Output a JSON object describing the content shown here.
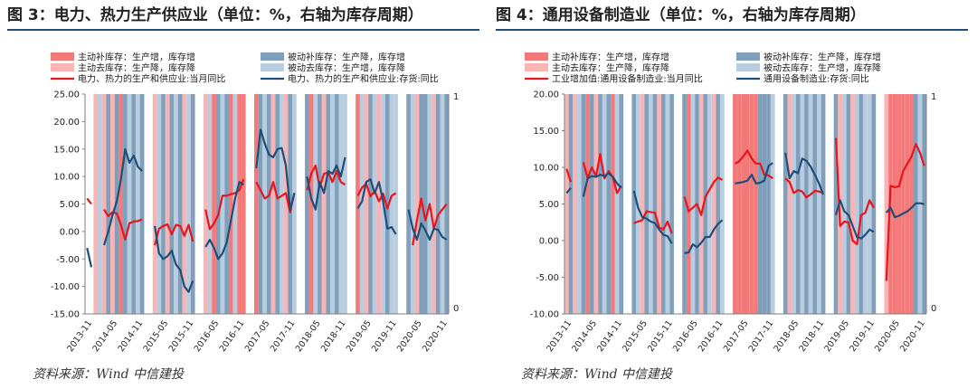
{
  "colors": {
    "active_restock": "#f47a7a",
    "active_destock": "#fbb4b4",
    "passive_restock": "#7f9fba",
    "passive_destock": "#b9cde0",
    "production_line": "#e8141e",
    "inventory_line": "#1f4e79",
    "title_rule": "#1f4e79"
  },
  "panels": [
    {
      "title": "图 3：电力、热力生产供应业（单位：%，右轴为库存周期）",
      "source": "资料来源：Wind 中信建投",
      "legend": [
        {
          "label": "主动补库存：生产增，库存增",
          "kind": "patch",
          "phase": "AR"
        },
        {
          "label": "被动补库存：生产降，库存增",
          "kind": "patch",
          "phase": "PR"
        },
        {
          "label": "主动去库存：生产降，库存降",
          "kind": "patch",
          "phase": "AD"
        },
        {
          "label": "被动去库存：生产增，库存降",
          "kind": "patch",
          "phase": "PD"
        },
        {
          "label": "电力、热力的生产和供应业:当月同比",
          "kind": "line",
          "series": "production"
        },
        {
          "label": "电力、热力的生产和供应业:存货:同比",
          "kind": "line",
          "series": "inventory"
        }
      ]
    },
    {
      "title": "图 4：通用设备制造业（单位：%，右轴为库存周期）",
      "source": "资料来源：Wind 中信建投",
      "legend": [
        {
          "label": "主动补库存：生产增，库存增",
          "kind": "patch",
          "phase": "AR"
        },
        {
          "label": "被动补库存：生产降，库存增",
          "kind": "patch",
          "phase": "PR"
        },
        {
          "label": "主动去库存：生产降，库存降",
          "kind": "patch",
          "phase": "AD"
        },
        {
          "label": "被动去库存：生产增，库存降",
          "kind": "patch",
          "phase": "PD"
        },
        {
          "label": "工业增加值:通用设备制造业:当月同比",
          "kind": "line",
          "series": "production"
        },
        {
          "label": "通用设备制造业:存货:同比",
          "kind": "line",
          "series": "inventory"
        }
      ]
    }
  ],
  "chart_data": [
    {
      "type": "line",
      "title": "图 3：电力、热力生产供应业（单位：%，右轴为库存周期）",
      "x": [
        "2013-11",
        "2013-12",
        "2014-01",
        "2014-02",
        "2014-03",
        "2014-04",
        "2014-05",
        "2014-06",
        "2014-07",
        "2014-08",
        "2014-09",
        "2014-10",
        "2014-11",
        "2014-12",
        "2015-01",
        "2015-02",
        "2015-03",
        "2015-04",
        "2015-05",
        "2015-06",
        "2015-07",
        "2015-08",
        "2015-09",
        "2015-10",
        "2015-11",
        "2015-12",
        "2016-01",
        "2016-02",
        "2016-03",
        "2016-04",
        "2016-05",
        "2016-06",
        "2016-07",
        "2016-08",
        "2016-09",
        "2016-10",
        "2016-11",
        "2016-12",
        "2017-01",
        "2017-02",
        "2017-03",
        "2017-04",
        "2017-05",
        "2017-06",
        "2017-07",
        "2017-08",
        "2017-09",
        "2017-10",
        "2017-11",
        "2017-12",
        "2018-01",
        "2018-02",
        "2018-03",
        "2018-04",
        "2018-05",
        "2018-06",
        "2018-07",
        "2018-08",
        "2018-09",
        "2018-10",
        "2018-11",
        "2018-12",
        "2019-01",
        "2019-02",
        "2019-03",
        "2019-04",
        "2019-05",
        "2019-06",
        "2019-07",
        "2019-08",
        "2019-09",
        "2019-10",
        "2019-11",
        "2019-12",
        "2020-01",
        "2020-02",
        "2020-03",
        "2020-04",
        "2020-05",
        "2020-06",
        "2020-07",
        "2020-08",
        "2020-09",
        "2020-10",
        "2020-11",
        "2020-12"
      ],
      "x_tick_labels": [
        "2013-11",
        "2014-05",
        "2014-11",
        "2015-05",
        "2015-11",
        "2016-05",
        "2016-11",
        "2017-05",
        "2017-11",
        "2018-05",
        "2018-11",
        "2019-05",
        "2019-11",
        "2020-05",
        "2020-11"
      ],
      "ylim": [
        -15,
        25
      ],
      "yticks": [
        -15,
        -10,
        -5,
        0,
        5,
        10,
        15,
        20,
        25
      ],
      "y_tick_labels": [
        "-15.00",
        "-10.00",
        "-5.00",
        "0.00",
        "5.00",
        "10.00",
        "15.00",
        "20.00",
        "25.00"
      ],
      "y2lim": [
        0,
        1
      ],
      "y2_tick_labels": [
        "0",
        "1"
      ],
      "phases": [
        "",
        "",
        "AD",
        "PD",
        "AD",
        "PR",
        "AD",
        "PR",
        "AR",
        "PR",
        "PD",
        "PR",
        "PD",
        "PR",
        "",
        "",
        "AD",
        "PD",
        "PR",
        "AD",
        "PR",
        "PD",
        "PR",
        "AD",
        "PD",
        "PR",
        "",
        "",
        "AD",
        "PD",
        "AR",
        "PR",
        "PD",
        "PR",
        "AR",
        "PD",
        "AR",
        "AR",
        "",
        "",
        "AR",
        "PR",
        "PD",
        "PR",
        "AD",
        "PR",
        "PD",
        "AD",
        "PR",
        "PD",
        "",
        "",
        "PR",
        "AR",
        "PD",
        "PR",
        "AD",
        "PR",
        "PD",
        "PR",
        "PD",
        "PD",
        "",
        "",
        "AR",
        "PD",
        "AD",
        "PR",
        "PD",
        "AD",
        "PD",
        "PR",
        "PD",
        "PD",
        "",
        "",
        "PR",
        "PD",
        "AD",
        "PR",
        "PR",
        "PD",
        "AD",
        "PR",
        "PD",
        "PR"
      ],
      "series": [
        {
          "name": "电力、热力的生产和供应业:当月同比",
          "role": "production",
          "values": [
            6.0,
            5.0,
            null,
            null,
            4.0,
            2.8,
            3.5,
            3.3,
            1.2,
            -1.5,
            1.5,
            1.8,
            1.9,
            2.2,
            null,
            null,
            -2.5,
            0.5,
            1.0,
            1.3,
            -0.5,
            1.2,
            1.0,
            -0.8,
            1.2,
            -1.8,
            null,
            null,
            4.0,
            0.4,
            1.5,
            3.0,
            6.5,
            6.5,
            6.8,
            7.0,
            7.5,
            9.5,
            null,
            null,
            9.0,
            7.5,
            6.0,
            6.5,
            9.0,
            6.0,
            6.5,
            7.0,
            3.5,
            7.0,
            null,
            null,
            7.5,
            10.5,
            12.0,
            8.0,
            10.5,
            10.8,
            9.0,
            11.0,
            9.0,
            8.5,
            null,
            null,
            6.5,
            8.0,
            8.7,
            6.4,
            7.3,
            5.5,
            6.9,
            4.2,
            6.5,
            7.0,
            null,
            null,
            null,
            -2.5,
            2.0,
            6.0,
            2.0,
            5.0,
            0.5,
            3.0,
            4.0,
            5.0
          ]
        },
        {
          "name": "电力、热力的生产和供应业:存货:同比",
          "role": "inventory",
          "values": [
            -3.0,
            -6.5,
            null,
            null,
            -2.5,
            0.0,
            3.0,
            5.5,
            9.5,
            15.0,
            12.5,
            13.8,
            11.8,
            11.0,
            null,
            null,
            1.0,
            -4.0,
            -5.0,
            -4.5,
            -3.5,
            -6.0,
            -7.0,
            -10.0,
            -11.0,
            -9.0,
            null,
            null,
            -2.8,
            -1.5,
            -3.0,
            -5.0,
            -4.0,
            -2.0,
            2.0,
            6.0,
            9.0,
            8.5,
            null,
            null,
            11.5,
            18.5,
            16.0,
            14.0,
            13.5,
            15.0,
            15.2,
            12.0,
            4.0,
            7.0,
            null,
            null,
            10.0,
            6.0,
            4.0,
            9.0,
            7.0,
            11.0,
            10.5,
            12.0,
            10.0,
            13.5,
            null,
            null,
            4.2,
            5.5,
            9.0,
            9.5,
            7.0,
            9.0,
            5.5,
            0.5,
            0.8,
            -0.5,
            null,
            null,
            4.0,
            0.5,
            -1.5,
            1.5,
            0.2,
            -1.5,
            0.5,
            0.3,
            -1.0,
            -1.5
          ]
        }
      ]
    },
    {
      "type": "line",
      "title": "图 4：通用设备制造业（单位：%，右轴为库存周期）",
      "x": [
        "2013-11",
        "2013-12",
        "2014-01",
        "2014-02",
        "2014-03",
        "2014-04",
        "2014-05",
        "2014-06",
        "2014-07",
        "2014-08",
        "2014-09",
        "2014-10",
        "2014-11",
        "2014-12",
        "2015-01",
        "2015-02",
        "2015-03",
        "2015-04",
        "2015-05",
        "2015-06",
        "2015-07",
        "2015-08",
        "2015-09",
        "2015-10",
        "2015-11",
        "2015-12",
        "2016-01",
        "2016-02",
        "2016-03",
        "2016-04",
        "2016-05",
        "2016-06",
        "2016-07",
        "2016-08",
        "2016-09",
        "2016-10",
        "2016-11",
        "2016-12",
        "2017-01",
        "2017-02",
        "2017-03",
        "2017-04",
        "2017-05",
        "2017-06",
        "2017-07",
        "2017-08",
        "2017-09",
        "2017-10",
        "2017-11",
        "2017-12",
        "2018-01",
        "2018-02",
        "2018-03",
        "2018-04",
        "2018-05",
        "2018-06",
        "2018-07",
        "2018-08",
        "2018-09",
        "2018-10",
        "2018-11",
        "2018-12",
        "2019-01",
        "2019-02",
        "2019-03",
        "2019-04",
        "2019-05",
        "2019-06",
        "2019-07",
        "2019-08",
        "2019-09",
        "2019-10",
        "2019-11",
        "2019-12",
        "2020-01",
        "2020-02",
        "2020-03",
        "2020-04",
        "2020-05",
        "2020-06",
        "2020-07",
        "2020-08",
        "2020-09",
        "2020-10",
        "2020-11",
        "2020-12"
      ],
      "x_tick_labels": [
        "2013-11",
        "2014-05",
        "2014-11",
        "2015-05",
        "2015-11",
        "2016-05",
        "2016-11",
        "2017-05",
        "2017-11",
        "2018-05",
        "2018-11",
        "2019-05",
        "2019-11",
        "2020-05",
        "2020-11"
      ],
      "ylim": [
        -10,
        20
      ],
      "yticks": [
        -10,
        -5,
        0,
        5,
        10,
        15,
        20
      ],
      "y_tick_labels": [
        "-10.00",
        "-5.00",
        "0.00",
        "5.00",
        "10.00",
        "15.00",
        "20.00"
      ],
      "y2lim": [
        0,
        1
      ],
      "y2_tick_labels": [
        "0",
        "1"
      ],
      "phases": [
        "AD",
        "PR",
        "AD",
        "PD",
        "PR",
        "AR",
        "PR",
        "AD",
        "PR",
        "PD",
        "PR",
        "AR",
        "PD",
        "PR",
        "",
        "",
        "PR",
        "PD",
        "AD",
        "PR",
        "PD",
        "PR",
        "AD",
        "PR",
        "PD",
        "PR",
        "",
        "",
        "PR",
        "AR",
        "PD",
        "PR",
        "AD",
        "PR",
        "PD",
        "AD",
        "PR",
        "PD",
        "",
        "",
        "AR",
        "AR",
        "AR",
        "AR",
        "AR",
        "AR",
        "PR",
        "PR",
        "PR",
        "PD",
        "",
        "",
        "PR",
        "AD",
        "PD",
        "PR",
        "PD",
        "PR",
        "PD",
        "PR",
        "PD",
        "PR",
        "",
        "",
        "PR",
        "AD",
        "PD",
        "PR",
        "AD",
        "PD",
        "PR",
        "PD",
        "PD",
        "PR",
        "",
        "",
        "AD",
        "AR",
        "AR",
        "AR",
        "AR",
        "AR",
        "AR",
        "PR",
        "PD",
        "PR"
      ],
      "series": [
        {
          "name": "工业增加值:通用设备制造业:当月同比",
          "role": "production",
          "values": [
            9.8,
            8.0,
            null,
            null,
            10.7,
            8.5,
            10.0,
            8.8,
            11.8,
            8.5,
            9.5,
            8.6,
            6.5,
            7.5,
            null,
            null,
            2.4,
            2.6,
            2.8,
            4.0,
            3.9,
            3.8,
            1.8,
            1.5,
            2.6,
            1.0,
            null,
            null,
            6.0,
            4.0,
            4.5,
            5.0,
            3.5,
            6.0,
            7.0,
            8.0,
            8.6,
            8.3,
            null,
            null,
            10.5,
            10.8,
            11.5,
            12.3,
            11.2,
            10.5,
            10.5,
            9.0,
            8.9,
            8.5,
            null,
            null,
            8.5,
            8.0,
            6.5,
            6.9,
            6.7,
            5.9,
            6.3,
            6.8,
            6.7,
            6.5,
            null,
            null,
            14.0,
            2.0,
            2.6,
            2.5,
            0.0,
            -0.5,
            3.5,
            3.8,
            5.5,
            4.5,
            null,
            null,
            -5.5,
            7.5,
            7.3,
            7.4,
            9.5,
            10.5,
            11.5,
            13.2,
            12.0,
            10.2
          ]
        },
        {
          "name": "通用设备制造业:存货:同比",
          "role": "inventory",
          "values": [
            6.5,
            7.2,
            null,
            null,
            6.0,
            8.5,
            8.8,
            8.7,
            9.0,
            8.8,
            9.2,
            8.7,
            7.8,
            7.2,
            null,
            null,
            6.8,
            4.5,
            3.2,
            3.0,
            2.6,
            2.4,
            1.5,
            0.8,
            0.6,
            -0.4,
            null,
            null,
            -1.7,
            -1.6,
            -0.5,
            -0.9,
            -0.3,
            0.5,
            0.5,
            1.5,
            2.3,
            2.8,
            null,
            null,
            7.8,
            7.9,
            8.0,
            8.2,
            9.0,
            7.8,
            7.9,
            8.2,
            10.2,
            10.6,
            null,
            null,
            12.0,
            8.5,
            9.5,
            9.2,
            11.2,
            10.9,
            10.1,
            9.0,
            7.8,
            6.3,
            null,
            null,
            3.5,
            5.5,
            4.0,
            3.5,
            2.0,
            0.5,
            0.3,
            0.8,
            1.5,
            1.2,
            null,
            null,
            3.8,
            4.5,
            3.2,
            3.4,
            3.7,
            4.0,
            4.5,
            5.1,
            5.1,
            5.0
          ]
        }
      ]
    }
  ]
}
